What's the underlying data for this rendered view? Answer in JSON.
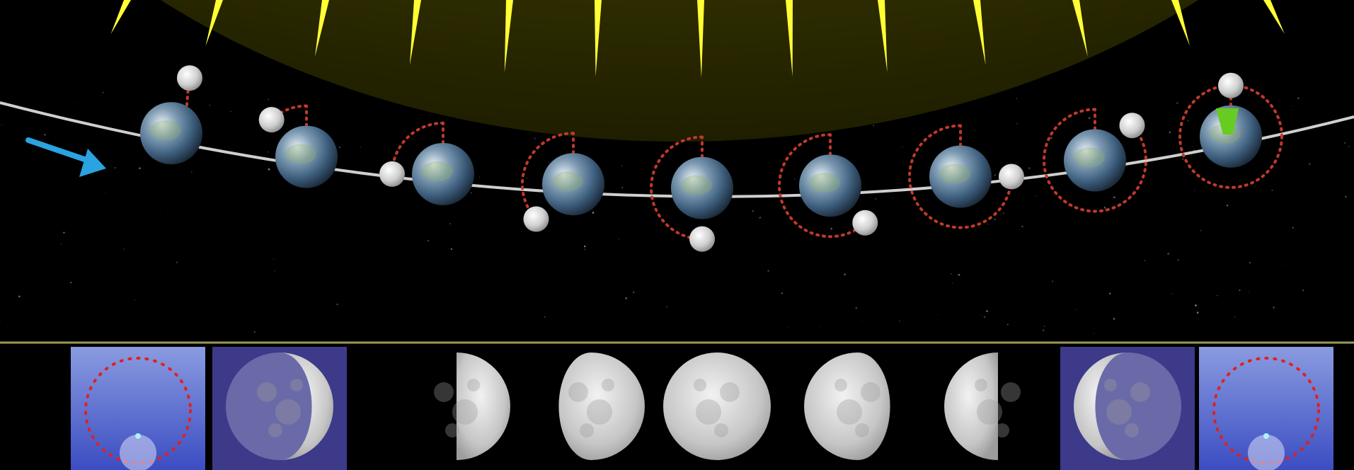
{
  "diagram": {
    "colors": {
      "space": "#000000",
      "sun_glow": "#6b6a00",
      "sun_ray": "#ffff33",
      "orbit": "#cfcfcf",
      "moon_orbit_dots": "#c0392b",
      "arrow": "#2aa3e0",
      "green_marker": "#66cc22",
      "divider": "#9a9a55",
      "panel_blue": "#4a5cc8",
      "panel_purple": "#3d3a8a"
    },
    "icons": [
      "sun-rays",
      "earth",
      "moon",
      "direction-arrow",
      "sunlight-wedge"
    ],
    "sequence": [
      {
        "stage": 1,
        "moon_orbit_fraction": 0.0
      },
      {
        "stage": 2,
        "moon_orbit_fraction": 0.12
      },
      {
        "stage": 3,
        "moon_orbit_fraction": 0.25
      },
      {
        "stage": 4,
        "moon_orbit_fraction": 0.37
      },
      {
        "stage": 5,
        "moon_orbit_fraction": 0.5
      },
      {
        "stage": 6,
        "moon_orbit_fraction": 0.62
      },
      {
        "stage": 7,
        "moon_orbit_fraction": 0.75
      },
      {
        "stage": 8,
        "moon_orbit_fraction": 0.87
      },
      {
        "stage": 9,
        "moon_orbit_fraction": 1.0
      }
    ],
    "phases": [
      {
        "kind": "new-blue",
        "illumination": 0.0
      },
      {
        "kind": "waxing-crescent",
        "illumination": 0.2
      },
      {
        "kind": "first-quarter",
        "illumination": 0.5
      },
      {
        "kind": "waxing-gibbous",
        "illumination": 0.8
      },
      {
        "kind": "full",
        "illumination": 1.0
      },
      {
        "kind": "waning-gibbous",
        "illumination": 0.8
      },
      {
        "kind": "last-quarter",
        "illumination": 0.5
      },
      {
        "kind": "waning-crescent",
        "illumination": 0.2
      },
      {
        "kind": "new-blue",
        "illumination": 0.0
      }
    ]
  }
}
